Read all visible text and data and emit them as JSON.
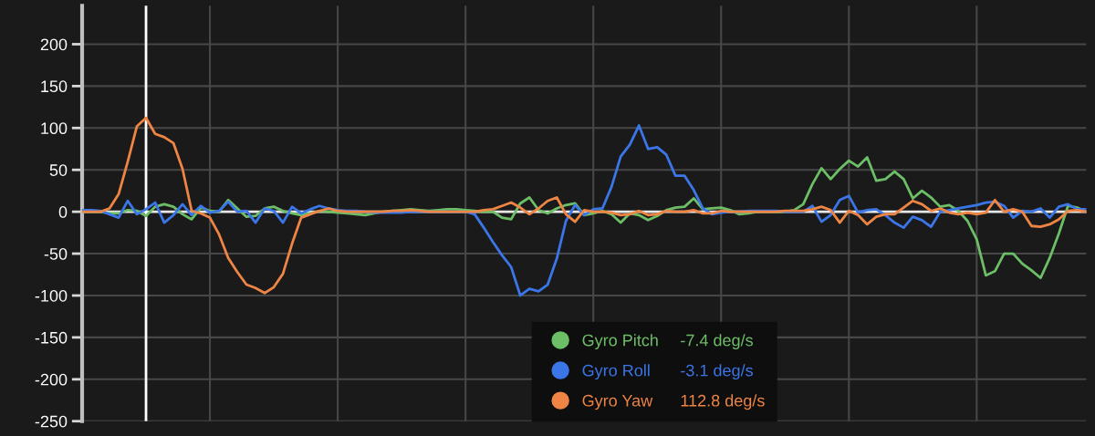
{
  "chart_data": {
    "type": "line",
    "categories": [
      null,
      null,
      null,
      null,
      null,
      null,
      null,
      null,
      null,
      null,
      null,
      null,
      null,
      null,
      null,
      null,
      null,
      null,
      null,
      null,
      null,
      null,
      null,
      null,
      null,
      null,
      null,
      null,
      null,
      null,
      null,
      null,
      null,
      null,
      null,
      null,
      null,
      null,
      null,
      null,
      null,
      null,
      null,
      null,
      null,
      null,
      null,
      null,
      null,
      null,
      null,
      null,
      null,
      null,
      null,
      null,
      null,
      null,
      null,
      null,
      null,
      null,
      null,
      null,
      null,
      null,
      null,
      null,
      null,
      null,
      null,
      null,
      null,
      null,
      null,
      null,
      null,
      null,
      null,
      null,
      null,
      null,
      null,
      null,
      null,
      null,
      null,
      null,
      null,
      null,
      null,
      null,
      null,
      null,
      null,
      null,
      null,
      null,
      null,
      null,
      null,
      null,
      null,
      null,
      null,
      null,
      null,
      null,
      null,
      null,
      null
    ],
    "ylim": [
      -250,
      246
    ],
    "yticks": [
      -250,
      -200,
      -150,
      -100,
      -50,
      0,
      50,
      100,
      150,
      200
    ],
    "tick_labels": "y",
    "grid": true,
    "legend": "bottom",
    "marker": "none",
    "line_style": "solid",
    "ref_lines": [
      {
        "axis": "y",
        "value": 0,
        "color": "#e6e6e6"
      }
    ],
    "annotations": [
      "-7.4 deg/s",
      "-3.1 deg/s",
      "112.8 deg/s"
    ],
    "series": [
      {
        "name": "Gyro Pitch",
        "color": "#6dbf67",
        "values": [
          0,
          0,
          0,
          -2,
          -2,
          2,
          1,
          -5,
          6,
          9,
          6,
          -3,
          -9,
          5,
          1,
          0,
          14,
          4,
          -6,
          -5,
          4,
          6,
          1,
          -2,
          -4,
          -2,
          1,
          0,
          -1,
          -2,
          -3,
          -4,
          -2,
          0,
          1,
          2,
          3,
          2,
          1,
          2,
          3,
          3,
          2,
          1,
          0,
          0,
          -7,
          -9,
          10,
          17,
          2,
          -2,
          4,
          8,
          10,
          -4,
          -2,
          1,
          -3,
          -13,
          -2,
          -4,
          -10,
          -5,
          2,
          5,
          6,
          16,
          3,
          4,
          5,
          2,
          -3,
          -2,
          0,
          0,
          0,
          0,
          2,
          9,
          33,
          52,
          39,
          51,
          61,
          54,
          65,
          37,
          39,
          48,
          39,
          16,
          25,
          17,
          6,
          8,
          1,
          -11,
          -33,
          -76,
          -71,
          -50,
          -50,
          -62,
          -70,
          -79,
          -55,
          -26,
          7,
          5,
          0
        ]
      },
      {
        "name": "Gyro Roll",
        "color": "#3b76e8",
        "values": [
          2,
          2,
          1,
          -3,
          -7,
          13,
          -3,
          3,
          11,
          -13,
          -4,
          9,
          -4,
          7,
          -1,
          1,
          12,
          0,
          1,
          -13,
          4,
          1,
          -13,
          6,
          -2,
          3,
          7,
          4,
          2,
          1,
          1,
          0,
          -1,
          -1,
          -1,
          -1,
          0,
          0,
          0,
          0,
          0,
          0,
          0,
          -3,
          -19,
          -36,
          -52,
          -66,
          -100,
          -92,
          -95,
          -87,
          -56,
          -11,
          8,
          -4,
          3,
          4,
          30,
          66,
          80,
          103,
          75,
          77,
          68,
          43,
          43,
          26,
          4,
          -3,
          -1,
          0,
          0,
          1,
          1,
          1,
          1,
          0,
          0,
          0,
          7,
          -12,
          -4,
          14,
          19,
          -1,
          2,
          3,
          -4,
          -13,
          -19,
          -6,
          -10,
          -18,
          0,
          2,
          4,
          6,
          8,
          11,
          12,
          7,
          -7,
          1,
          0,
          4,
          -7,
          6,
          9,
          3,
          3
        ]
      },
      {
        "name": "Gyro Yaw",
        "color": "#ee8544",
        "values": [
          0,
          0,
          0,
          4,
          21,
          60,
          102,
          112,
          93,
          89,
          82,
          51,
          1,
          -2,
          -7,
          -27,
          -55,
          -72,
          -87,
          -91,
          -97,
          -90,
          -74,
          -38,
          -7,
          -3,
          1,
          4,
          1,
          0,
          0,
          0,
          0,
          0,
          1,
          1,
          2,
          1,
          0,
          0,
          0,
          0,
          0,
          0,
          2,
          3,
          7,
          11,
          5,
          -3,
          4,
          13,
          17,
          -3,
          -12,
          2,
          0,
          0,
          -1,
          -4,
          -3,
          1,
          -4,
          -3,
          1,
          0,
          0,
          2,
          -2,
          -2,
          1,
          0,
          0,
          0,
          0,
          0,
          0,
          1,
          1,
          1,
          3,
          6,
          2,
          -13,
          1,
          -4,
          -15,
          -6,
          -3,
          -3,
          5,
          13,
          9,
          1,
          4,
          -1,
          -3,
          -1,
          -3,
          -1,
          14,
          0,
          3,
          0,
          -17,
          -18,
          -15,
          -9,
          1,
          2,
          0
        ]
      }
    ]
  }
}
